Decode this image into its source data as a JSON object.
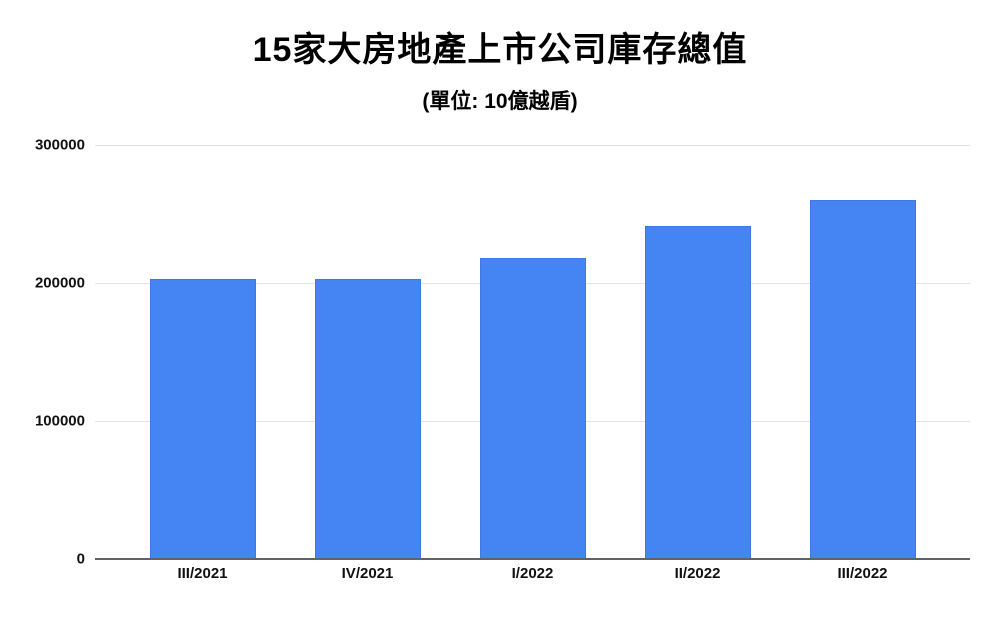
{
  "chart_data": {
    "type": "bar",
    "title": "15家大房地產上市公司庫存總值",
    "subtitle": "(單位: 10億越盾)",
    "categories": [
      "III/2021",
      "IV/2021",
      "I/2022",
      "II/2022",
      "III/2022"
    ],
    "values": [
      203000,
      203000,
      218000,
      241000,
      260000
    ],
    "xlabel": "",
    "ylabel": "",
    "ylim": [
      0,
      300000
    ],
    "yticks": [
      0,
      100000,
      200000,
      300000
    ],
    "grid": "horizontal",
    "legend": "none",
    "bar_color": "#4484f3",
    "bar_border_color": "#3d79e0",
    "gridline_color": "#e3e3e3",
    "axis_line_color": "#5f6368",
    "tick_label_color": "#111111",
    "title_color": "#000000"
  }
}
